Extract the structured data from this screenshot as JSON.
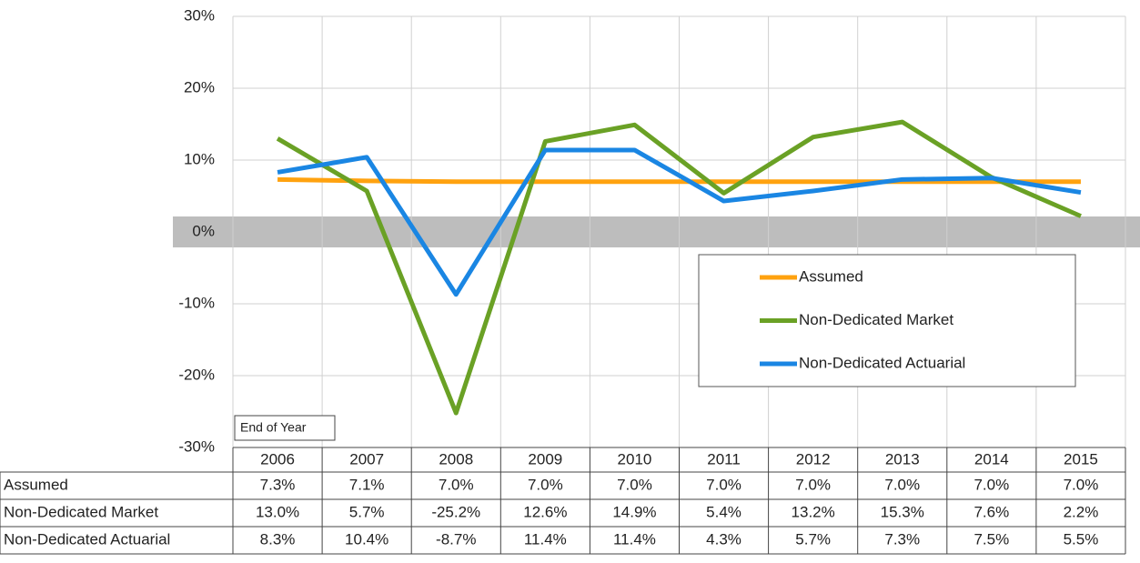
{
  "chart_data": {
    "type": "line",
    "x_axis_label": "End of Year",
    "categories": [
      "2006",
      "2007",
      "2008",
      "2009",
      "2010",
      "2011",
      "2012",
      "2013",
      "2014",
      "2015"
    ],
    "series": [
      {
        "name": "Assumed",
        "color": "#ffa20f",
        "values": [
          7.3,
          7.1,
          7.0,
          7.0,
          7.0,
          7.0,
          7.0,
          7.0,
          7.0,
          7.0
        ],
        "value_labels": [
          "7.3%",
          "7.1%",
          "7.0%",
          "7.0%",
          "7.0%",
          "7.0%",
          "7.0%",
          "7.0%",
          "7.0%",
          "7.0%"
        ]
      },
      {
        "name": "Non-Dedicated Market",
        "color": "#6aa125",
        "values": [
          13.0,
          5.7,
          -25.2,
          12.6,
          14.9,
          5.4,
          13.2,
          15.3,
          7.6,
          2.2
        ],
        "value_labels": [
          "13.0%",
          "5.7%",
          "-25.2%",
          "12.6%",
          "14.9%",
          "5.4%",
          "13.2%",
          "15.3%",
          "7.6%",
          "2.2%"
        ]
      },
      {
        "name": "Non-Dedicated Actuarial",
        "color": "#1a86e3",
        "values": [
          8.3,
          10.4,
          -8.7,
          11.4,
          11.4,
          4.3,
          5.7,
          7.3,
          7.5,
          5.5
        ],
        "value_labels": [
          "8.3%",
          "10.4%",
          "-8.7%",
          "11.4%",
          "11.4%",
          "4.3%",
          "5.7%",
          "7.3%",
          "7.5%",
          "5.5%"
        ]
      }
    ],
    "ylim": [
      -30,
      30
    ],
    "yticks": [
      {
        "value": -30,
        "label": "-30%"
      },
      {
        "value": -20,
        "label": "-20%"
      },
      {
        "value": -10,
        "label": "-10%"
      },
      {
        "value": 0,
        "label": "0%"
      },
      {
        "value": 10,
        "label": "10%"
      },
      {
        "value": 20,
        "label": "20%"
      },
      {
        "value": 30,
        "label": "30%"
      }
    ],
    "grid": true,
    "legend": "right"
  }
}
